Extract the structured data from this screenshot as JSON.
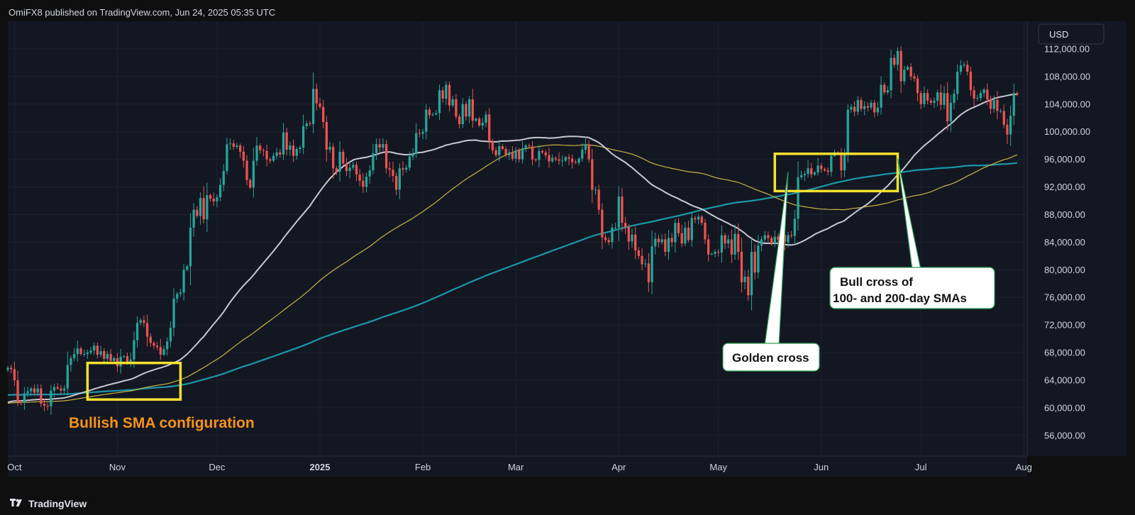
{
  "header": {
    "publisher": "OmiFX8 published on TradingView.com, Jun 24, 2025 05:35 UTC"
  },
  "footer": {
    "brand": "TradingView",
    "logo_icon": "tradingview-logo-icon"
  },
  "colors": {
    "background": "#131722",
    "up": "#26a69a",
    "down": "#ef5350",
    "sma50": "#c8c8d0",
    "sma100": "#c9b445",
    "sma200": "#1a98a8",
    "box": "#f5e12e",
    "annotation_orange": "#f7931a"
  },
  "chart_data": {
    "type": "candlestick",
    "currency": "USD",
    "x_range": [
      "2024-09-29",
      "2025-08-02"
    ],
    "ylim": [
      53000,
      116000
    ],
    "grid": true,
    "y_ticks": [
      "112,000.00",
      "108,000.00",
      "104,000.00",
      "100,000.00",
      "96,000.00",
      "92,000.00",
      "88,000.00",
      "84,000.00",
      "80,000.00",
      "76,000.00",
      "72,000.00",
      "68,000.00",
      "64,000.00",
      "60,000.00",
      "56,000.00"
    ],
    "x_ticks": [
      {
        "label": "Oct",
        "date": "2024-10-01",
        "bold": false
      },
      {
        "label": "Nov",
        "date": "2024-11-01",
        "bold": false
      },
      {
        "label": "Dec",
        "date": "2024-12-01",
        "bold": false
      },
      {
        "label": "2025",
        "date": "2025-01-01",
        "bold": true
      },
      {
        "label": "Feb",
        "date": "2025-02-01",
        "bold": false
      },
      {
        "label": "Mar",
        "date": "2025-03-01",
        "bold": false
      },
      {
        "label": "Apr",
        "date": "2025-04-01",
        "bold": false
      },
      {
        "label": "May",
        "date": "2025-05-01",
        "bold": false
      },
      {
        "label": "Jun",
        "date": "2025-06-01",
        "bold": false
      },
      {
        "label": "Jul",
        "date": "2025-07-01",
        "bold": false
      },
      {
        "label": "Aug",
        "date": "2025-08-01",
        "bold": false
      }
    ],
    "price_start": "2024-09-29",
    "closes": [
      65800,
      65600,
      64000,
      60800,
      60700,
      62100,
      62400,
      62800,
      62200,
      62800,
      60600,
      60300,
      60200,
      62500,
      63000,
      62800,
      62500,
      62800,
      66200,
      67200,
      67800,
      68600,
      67800,
      67800,
      68000,
      68300,
      69000,
      67700,
      68200,
      67100,
      67800,
      66800,
      67200,
      66000,
      67400,
      67500,
      66600,
      67000,
      69800,
      72300,
      72700,
      72300,
      70300,
      69400,
      69000,
      68800,
      67700,
      68500,
      69600,
      71600,
      75800,
      76500,
      76700,
      80000,
      80500,
      86100,
      88700,
      87800,
      90400,
      87300,
      90800,
      90300,
      89900,
      90500,
      92300,
      94300,
      98200,
      98300,
      97800,
      98000,
      97100,
      95800,
      93000,
      91900,
      95800,
      98000,
      97300,
      97200,
      96000,
      95800,
      96500,
      97000,
      96700,
      99900,
      97400,
      98000,
      96500,
      97500,
      97700,
      100800,
      101200,
      101100,
      106200,
      104100,
      103600,
      101400,
      97400,
      97800,
      94700,
      94200,
      97100,
      95400,
      94300,
      94800,
      95200,
      93800,
      92900,
      92000,
      93500,
      94400,
      96900,
      98200,
      97700,
      98200,
      94700,
      94500,
      93600,
      91600,
      94700,
      94500,
      94800,
      96400,
      96800,
      99800,
      99700,
      100000,
      103200,
      102400,
      102500,
      102700,
      106000,
      104800,
      106800,
      103800,
      104700,
      102200,
      101100,
      104000,
      102200,
      104700,
      101600,
      101900,
      100900,
      101300,
      102500,
      98600,
      97300,
      96600,
      97900,
      97500,
      96600,
      97000,
      96100,
      97300,
      96000,
      97600,
      98000,
      97900,
      96000,
      95900,
      97200,
      97000,
      96600,
      95700,
      96200,
      96000,
      95800,
      95800,
      96300,
      96100,
      95600,
      95500,
      96100,
      97400,
      98200,
      96000,
      91600,
      91600,
      88700,
      84700,
      84300,
      84000,
      86100,
      86100,
      90600,
      86800,
      86200,
      84100,
      85100,
      82800,
      82000,
      80800,
      80900,
      78200,
      83400,
      84500,
      84000,
      84400,
      82600,
      84600,
      84000,
      86800,
      85300,
      83800,
      86100,
      84300,
      87500,
      87300,
      87700,
      86800,
      84400,
      82200,
      82300,
      82600,
      82500,
      85000,
      83800,
      84400,
      82200,
      85200,
      82600,
      78200,
      79000,
      76300,
      82600,
      79600,
      83500,
      84400,
      85000,
      84600,
      83800,
      84800,
      84400,
      85100,
      84000,
      85000,
      84900,
      87400,
      93400,
      93700,
      93900,
      94700,
      93800,
      94100,
      95100,
      94600,
      94400,
      94200,
      96500,
      97000,
      96900,
      94400,
      96700,
      103200,
      103600,
      102900,
      104600,
      103300,
      103700,
      103500,
      104200,
      102800,
      103500,
      106800,
      105700,
      106000,
      110700,
      109700,
      111700,
      107300,
      109000,
      109400,
      108000,
      107700,
      105600,
      104000,
      105600,
      104500,
      104200,
      104500,
      105700,
      103900,
      105600,
      101500,
      104200,
      105500,
      108700,
      109600,
      109700,
      108700,
      106000,
      104800,
      104900,
      105600,
      106100,
      104700,
      103300,
      104600,
      103000,
      103000,
      101000,
      99600,
      102300,
      105600,
      105400
    ]
  },
  "annotations": {
    "bullish_label": "Bullish SMA configuration",
    "golden_cross_label": "Golden cross",
    "bull_cross_line1": "Bull cross of",
    "bull_cross_line2": "100- and 200-day SMAs"
  }
}
